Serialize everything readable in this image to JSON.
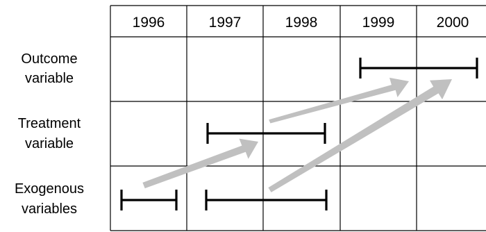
{
  "years": [
    "1996",
    "1997",
    "1998",
    "1999",
    "2000"
  ],
  "rows": [
    {
      "lines": [
        "Outcome",
        "variable"
      ]
    },
    {
      "lines": [
        "Treatment",
        "variable"
      ]
    },
    {
      "lines": [
        "Exogenous",
        "variables"
      ]
    }
  ],
  "colors": {
    "grid": "#000000",
    "interval": "#000000",
    "arrow": "#c0c0c0",
    "text": "#000000",
    "background": "#ffffff"
  }
}
